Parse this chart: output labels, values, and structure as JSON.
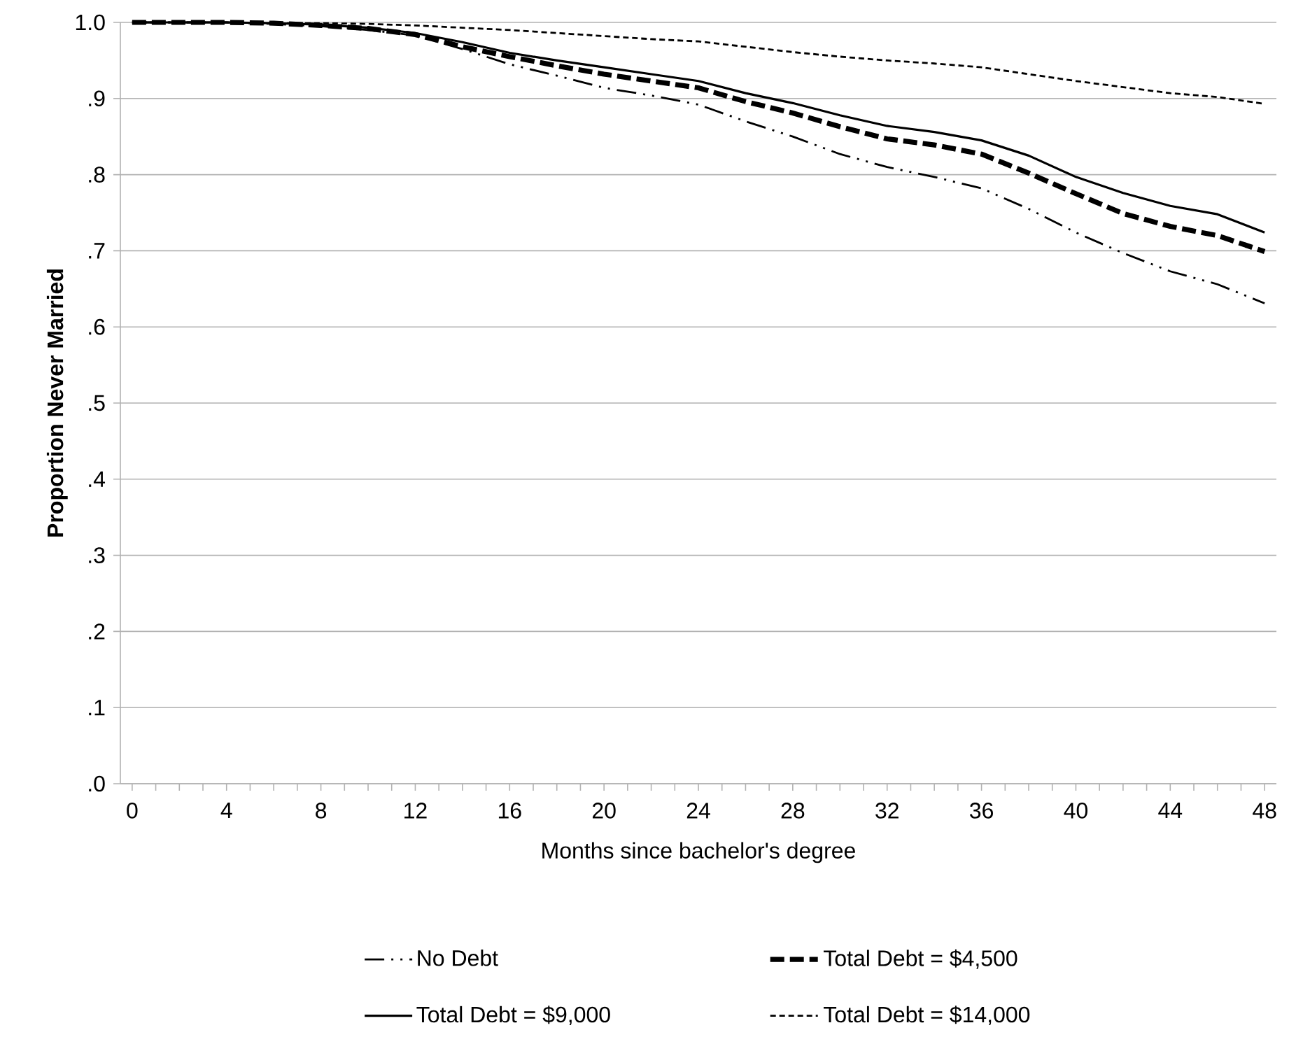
{
  "chart_data": {
    "type": "line",
    "xlabel": "Months since bachelor's degree",
    "ylabel": "Proportion Never Married",
    "xlim": [
      -0.5,
      48.5
    ],
    "ylim": [
      0,
      1
    ],
    "xticks": [
      0,
      {
        "value": 1,
        "label": null
      },
      {
        "value": 2,
        "label": null
      },
      {
        "value": 3,
        "label": null
      },
      4,
      {
        "value": 5,
        "label": null
      },
      {
        "value": 6,
        "label": null
      },
      {
        "value": 7,
        "label": null
      },
      8,
      {
        "value": 9,
        "label": null
      },
      {
        "value": 10,
        "label": null
      },
      {
        "value": 11,
        "label": null
      },
      12,
      {
        "value": 13,
        "label": null
      },
      {
        "value": 14,
        "label": null
      },
      {
        "value": 15,
        "label": null
      },
      16,
      {
        "value": 17,
        "label": null
      },
      {
        "value": 18,
        "label": null
      },
      {
        "value": 19,
        "label": null
      },
      20,
      {
        "value": 21,
        "label": null
      },
      {
        "value": 22,
        "label": null
      },
      {
        "value": 23,
        "label": null
      },
      24,
      {
        "value": 25,
        "label": null
      },
      {
        "value": 26,
        "label": null
      },
      {
        "value": 27,
        "label": null
      },
      28,
      {
        "value": 29,
        "label": null
      },
      {
        "value": 30,
        "label": null
      },
      {
        "value": 31,
        "label": null
      },
      32,
      {
        "value": 33,
        "label": null
      },
      {
        "value": 34,
        "label": null
      },
      {
        "value": 35,
        "label": null
      },
      36,
      {
        "value": 37,
        "label": null
      },
      {
        "value": 38,
        "label": null
      },
      {
        "value": 39,
        "label": null
      },
      40,
      {
        "value": 41,
        "label": null
      },
      {
        "value": 42,
        "label": null
      },
      {
        "value": 43,
        "label": null
      },
      44,
      {
        "value": 45,
        "label": null
      },
      {
        "value": 46,
        "label": null
      },
      {
        "value": 47,
        "label": null
      },
      48
    ],
    "yticks": [
      {
        "value": 0,
        "label": ".0"
      },
      {
        "value": 0.1,
        "label": ".1"
      },
      {
        "value": 0.2,
        "label": ".2"
      },
      {
        "value": 0.3,
        "label": ".3"
      },
      {
        "value": 0.4,
        "label": ".4"
      },
      {
        "value": 0.5,
        "label": ".5"
      },
      {
        "value": 0.6,
        "label": ".6"
      },
      {
        "value": 0.7,
        "label": ".7"
      },
      {
        "value": 0.8,
        "label": ".8"
      },
      {
        "value": 0.9,
        "label": ".9"
      },
      {
        "value": 1,
        "label": "1.0"
      }
    ],
    "grid": "y",
    "legend": "bottom",
    "marker": "none",
    "x": [
      0,
      2,
      4,
      6,
      8,
      10,
      12,
      14,
      16,
      18,
      20,
      22,
      24,
      26,
      28,
      30,
      32,
      34,
      36,
      38,
      40,
      42,
      44,
      46,
      48
    ],
    "series": [
      {
        "name": "No Debt",
        "color": "#000000",
        "line_style": "dashdotdot",
        "values": [
          1,
          1,
          1,
          0.998,
          0.995,
          0.99,
          0.983,
          0.965,
          0.945,
          0.93,
          0.914,
          0.904,
          0.892,
          0.87,
          0.85,
          0.827,
          0.81,
          0.797,
          0.782,
          0.755,
          0.724,
          0.697,
          0.673,
          0.656,
          0.631
        ]
      },
      {
        "name": "Total Debt = $4,500",
        "color": "#000000",
        "line_style": "dashed",
        "values": [
          1,
          1,
          1,
          0.999,
          0.996,
          0.992,
          0.984,
          0.968,
          0.955,
          0.943,
          0.932,
          0.923,
          0.914,
          0.896,
          0.881,
          0.863,
          0.847,
          0.839,
          0.827,
          0.802,
          0.775,
          0.749,
          0.732,
          0.72,
          0.699
        ]
      },
      {
        "name": "Total Debt = $9,000",
        "color": "#000000",
        "line_style": "solid",
        "values": [
          1,
          1,
          1,
          0.999,
          0.997,
          0.993,
          0.986,
          0.974,
          0.96,
          0.95,
          0.941,
          0.932,
          0.923,
          0.907,
          0.894,
          0.878,
          0.864,
          0.856,
          0.845,
          0.825,
          0.797,
          0.776,
          0.759,
          0.748,
          0.724
        ]
      },
      {
        "name": "Total Debt = $14,000",
        "color": "#000000",
        "line_style": "dotted",
        "values": [
          1,
          1,
          1,
          0.999,
          0.999,
          0.998,
          0.996,
          0.993,
          0.99,
          0.986,
          0.982,
          0.978,
          0.975,
          0.968,
          0.961,
          0.955,
          0.95,
          0.946,
          0.941,
          0.932,
          0.923,
          0.915,
          0.907,
          0.902,
          0.893
        ]
      }
    ]
  }
}
